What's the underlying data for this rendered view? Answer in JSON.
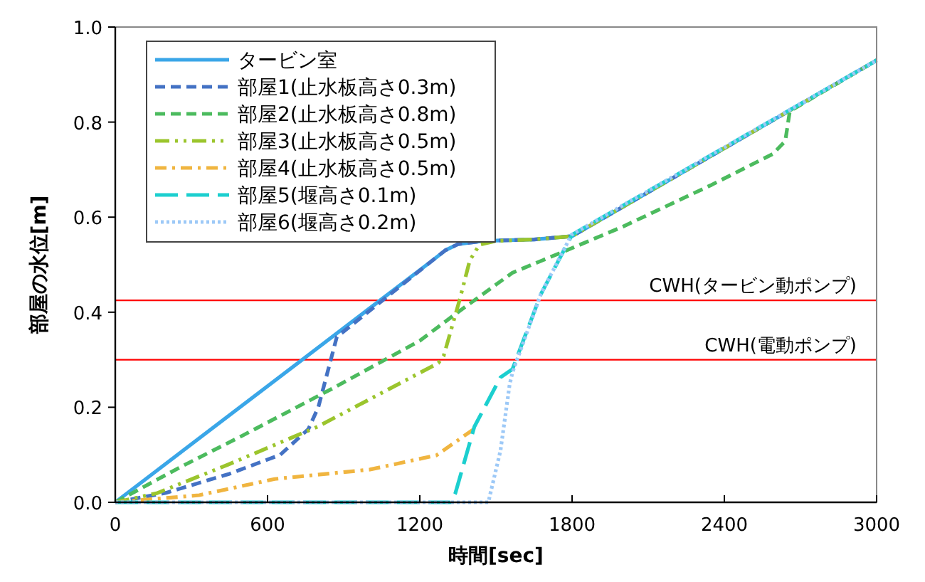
{
  "chart_data": {
    "type": "line",
    "xlabel": "時間[sec]",
    "ylabel": "部屋の水位[m]",
    "xlim": [
      0,
      3000
    ],
    "xticks": [
      0,
      600,
      1200,
      1800,
      2400,
      3000
    ],
    "ylim": [
      0,
      1
    ],
    "yticks": [
      {
        "value": 0,
        "label": "0.0"
      },
      {
        "value": 0.2,
        "label": "0.2"
      },
      {
        "value": 0.4,
        "label": "0.4"
      },
      {
        "value": 0.6,
        "label": "0.6"
      },
      {
        "value": 0.8,
        "label": "0.8"
      },
      {
        "value": 1,
        "label": "1.0"
      }
    ],
    "grid": false,
    "legend": "top left",
    "marker": "none",
    "ref_lines": [
      {
        "axis": "y",
        "value": 0.425,
        "label": "CWH(タービン動ポンプ)",
        "color": "#ff0000"
      },
      {
        "axis": "y",
        "value": 0.3,
        "label": "CWH(電動ポンプ)",
        "color": "#ff0000"
      }
    ],
    "series": [
      {
        "name": "タービン室",
        "color": "#3aa6e8",
        "line_style": "solid",
        "x": [
          0,
          1250,
          1300,
          1350,
          1450,
          1650,
          1800,
          3000
        ],
        "values": [
          0,
          0.509,
          0.53,
          0.543,
          0.55,
          0.553,
          0.56,
          0.93
        ]
      },
      {
        "name": "部屋1(止水板高さ0.3m)",
        "color": "#4472c4",
        "line_style": "dashed",
        "x": [
          0,
          200,
          450,
          650,
          761,
          800,
          873,
          1250,
          1300,
          1350,
          1450,
          1650,
          1800,
          3000
        ],
        "values": [
          0,
          0.02,
          0.06,
          0.1,
          0.154,
          0.2,
          0.348,
          0.509,
          0.53,
          0.543,
          0.55,
          0.553,
          0.56,
          0.93
        ]
      },
      {
        "name": "部屋2(止水板高さ0.8m)",
        "color": "#4cbb5e",
        "line_style": "dashed",
        "x": [
          0,
          256,
          500,
          854,
          1200,
          1350,
          1565,
          1800,
          2000,
          2350,
          2591,
          2640,
          2658,
          3000
        ],
        "values": [
          0,
          0.074,
          0.14,
          0.239,
          0.34,
          0.4,
          0.483,
          0.535,
          0.58,
          0.668,
          0.733,
          0.76,
          0.823,
          0.93
        ]
      },
      {
        "name": "部屋3(止水板高さ0.5m)",
        "color": "#9bc52d",
        "line_style": "dashdotdot",
        "x": [
          0,
          163,
          443,
          797,
          1273,
          1294,
          1358,
          1397,
          1435,
          1500,
          1650,
          1800,
          3000
        ],
        "values": [
          0,
          0.019,
          0.079,
          0.159,
          0.293,
          0.308,
          0.428,
          0.509,
          0.542,
          0.55,
          0.553,
          0.56,
          0.93
        ]
      },
      {
        "name": "部屋4(止水板高さ0.5m)",
        "color": "#f0b540",
        "line_style": "dashdot",
        "x": [
          0,
          331,
          628,
          1004,
          1266,
          1413
        ],
        "values": [
          0,
          0.015,
          0.049,
          0.069,
          0.099,
          0.154
        ]
      },
      {
        "name": "部屋5(堰高さ0.1m)",
        "color": "#1ccfcf",
        "line_style": "longdash",
        "x": [
          0,
          1320,
          1340,
          1415,
          1518,
          1565,
          1677,
          1800,
          3000
        ],
        "values": [
          0,
          0,
          0.019,
          0.159,
          0.263,
          0.28,
          0.438,
          0.563,
          0.93
        ]
      },
      {
        "name": "部屋6(堰高さ0.2m)",
        "color": "#9dc9f7",
        "line_style": "dotted",
        "x": [
          0,
          1470,
          1518,
          1554,
          1565,
          1677,
          1798,
          3000
        ],
        "values": [
          0,
          0,
          0.109,
          0.248,
          0.273,
          0.438,
          0.563,
          0.93
        ]
      }
    ]
  }
}
